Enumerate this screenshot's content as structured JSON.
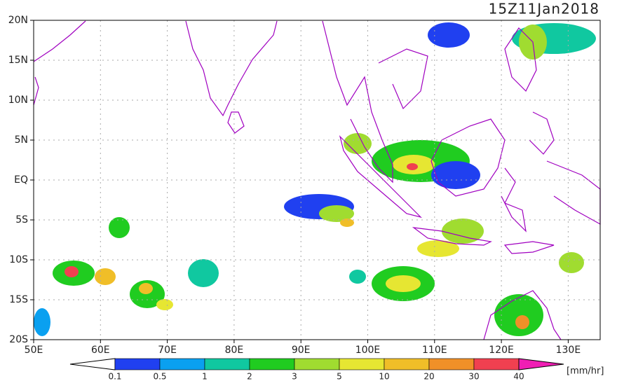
{
  "map": {
    "title": "15Z11Jan2018",
    "lon_labels": [
      "50E",
      "60E",
      "70E",
      "80E",
      "90E",
      "100E",
      "110E",
      "120E",
      "130E"
    ],
    "lat_labels": [
      "20N",
      "15N",
      "10N",
      "5N",
      "EQ",
      "5S",
      "10S",
      "15S",
      "20S"
    ]
  },
  "colorbar": {
    "levels": [
      0.1,
      0.5,
      1,
      2,
      3,
      5,
      10,
      20,
      30,
      40
    ],
    "colors": [
      "#ffffff",
      "#2040f0",
      "#0aa0f0",
      "#10c8a0",
      "#20cc20",
      "#a0dc30",
      "#e6e632",
      "#f0be28",
      "#f09028",
      "#f04050",
      "#f01eb4"
    ],
    "unit": "[mm/hr]"
  }
}
